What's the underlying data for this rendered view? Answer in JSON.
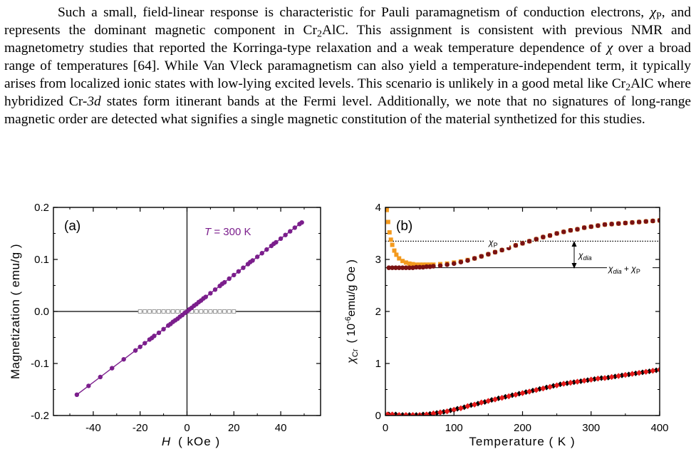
{
  "paragraph": {
    "segments": [
      {
        "t": "Such a small, field-linear response is characteristic for Pauli paramagnetism of conduction electrons, "
      },
      {
        "t": "χ",
        "style": "i"
      },
      {
        "t": "P",
        "style": "sub"
      },
      {
        "t": ", and represents the dominant magnetic component in Cr"
      },
      {
        "t": "2",
        "style": "sub"
      },
      {
        "t": "AlC. This assignment is consistent with previous NMR and magnetometry studies that reported the Korringa-type relaxation and a weak temperature dependence of "
      },
      {
        "t": "χ",
        "style": "i"
      },
      {
        "t": " over a broad range of temperatures [64]. While Van Vleck paramagnetism can also yield a temperature-independent term, it typically arises from localized ionic states with low-lying excited levels. This scenario is unlikely in a good metal like Cr"
      },
      {
        "t": "2",
        "style": "sub"
      },
      {
        "t": "AlC where hybridized Cr-"
      },
      {
        "t": "3d",
        "style": "i"
      },
      {
        "t": " states form itinerant bands at the Fermi level. Additionally, we note that no signatures of long-range magnetic order are detected what signifies a single magnetic constitution of the material synthetized for this studies."
      }
    ]
  },
  "colors": {
    "purple": "#7B1E8C",
    "gray_open": "#9A9A9A",
    "orange": "#F39A1E",
    "maroon": "#7A1212",
    "black": "#000000",
    "red": "#E41A1A"
  },
  "chart_data": [
    {
      "type": "scatter",
      "panel_label": "(a)",
      "annotation": "T = 300 K",
      "annotation_var": "T",
      "annotation_rest": " = 300 K",
      "xlabel_var": "H",
      "xlabel_unit": "( kOe )",
      "ylabel": "Magnetization  ( emu/g )",
      "xlim": [
        -57,
        57
      ],
      "ylim": [
        -0.2,
        0.2
      ],
      "xticks": [
        -40,
        -20,
        0,
        20,
        40
      ],
      "xtick_labels": [
        "-40",
        "-20",
        "0",
        "20",
        "40"
      ],
      "yticks": [
        -0.2,
        -0.1,
        0.0,
        0.1,
        0.2
      ],
      "ytick_labels": [
        "-0.2",
        "-0.1",
        "0.0",
        "0.1",
        "0.2"
      ],
      "series": [
        {
          "style": "filled-line",
          "color": "purple",
          "x": [
            -47,
            -42,
            -37,
            -32,
            -27,
            -22,
            -20,
            -18,
            -16,
            -15,
            -14,
            -12,
            -10,
            -8,
            -7,
            -6,
            -5,
            -4,
            -3,
            -2,
            -1,
            0,
            1,
            2,
            3,
            4,
            5,
            6,
            7,
            8,
            10,
            12,
            14,
            15,
            16,
            18,
            20,
            22,
            24,
            26,
            27,
            28,
            30,
            32,
            34,
            36,
            37,
            38,
            40,
            42,
            44,
            46,
            48,
            49
          ],
          "y": [
            -0.16,
            -0.143,
            -0.126,
            -0.109,
            -0.092,
            -0.075,
            -0.068,
            -0.061,
            -0.054,
            -0.051,
            -0.047,
            -0.041,
            -0.034,
            -0.027,
            -0.024,
            -0.02,
            -0.017,
            -0.014,
            -0.01,
            -0.007,
            -0.003,
            0.0,
            0.004,
            0.007,
            0.011,
            0.014,
            0.018,
            0.021,
            0.025,
            0.028,
            0.035,
            0.042,
            0.049,
            0.053,
            0.056,
            0.063,
            0.07,
            0.077,
            0.084,
            0.091,
            0.095,
            0.098,
            0.105,
            0.112,
            0.119,
            0.126,
            0.13,
            0.133,
            0.14,
            0.147,
            0.154,
            0.161,
            0.168,
            0.171
          ]
        },
        {
          "style": "open-square-line",
          "color": "gray_open",
          "x": [
            -20,
            -18,
            -16,
            -14,
            -12,
            -10,
            -8,
            -6,
            -4,
            -2,
            0,
            2,
            4,
            6,
            8,
            10,
            12,
            14,
            16,
            18,
            20
          ],
          "y": [
            0,
            0,
            0,
            0,
            0,
            0,
            0,
            0,
            0,
            0,
            0,
            0,
            0,
            0,
            0,
            0,
            0,
            0,
            0,
            0,
            0
          ]
        }
      ]
    },
    {
      "type": "scatter",
      "panel_label": "(b)",
      "xlabel": "Temperature  ( K )",
      "ylabel_sym": "χ",
      "ylabel_sub": "Cr",
      "ylabel_open": "( 10",
      "ylabel_sup": "-6",
      "ylabel_close": "emu/g Oe )",
      "xlim": [
        0,
        400
      ],
      "ylim": [
        0,
        4
      ],
      "xticks": [
        0,
        100,
        200,
        300,
        400
      ],
      "xtick_labels": [
        "0",
        "100",
        "200",
        "300",
        "400"
      ],
      "yticks": [
        0,
        1,
        2,
        3,
        4
      ],
      "ytick_labels": [
        "0",
        "1",
        "2",
        "3",
        "4"
      ],
      "reference_lines": {
        "chi_p_level": 3.35,
        "chi_dia_plus_p_level": 2.84
      },
      "annotations": {
        "chi_p_sym": "χ",
        "chi_p_sub": "P",
        "chi_dia_sym": "χ",
        "chi_dia_sub": "dia",
        "sum_sym1": "χ",
        "sum_sub1": "dia",
        "sum_plus": " + ",
        "sum_sym2": "χ",
        "sum_sub2": "P"
      },
      "series": [
        {
          "style": "orange-square",
          "color": "orange",
          "x": [
            2,
            4,
            6,
            8,
            10,
            13,
            16,
            20,
            25,
            30,
            35,
            40,
            45,
            50,
            55,
            60,
            65,
            70,
            80,
            90,
            100,
            110,
            120,
            130,
            140,
            150,
            160,
            170,
            180,
            190,
            200,
            210,
            220,
            230,
            240,
            250,
            260,
            270,
            280,
            290,
            300,
            310,
            320,
            330,
            340,
            350,
            360,
            370,
            380,
            390,
            400
          ],
          "y": [
            3.95,
            3.72,
            3.52,
            3.38,
            3.28,
            3.17,
            3.09,
            3.02,
            2.97,
            2.94,
            2.92,
            2.91,
            2.9,
            2.9,
            2.9,
            2.9,
            2.9,
            2.9,
            2.91,
            2.92,
            2.94,
            2.96,
            2.99,
            3.02,
            3.06,
            3.1,
            3.14,
            3.18,
            3.23,
            3.27,
            3.31,
            3.35,
            3.39,
            3.43,
            3.46,
            3.5,
            3.53,
            3.56,
            3.58,
            3.61,
            3.63,
            3.65,
            3.67,
            3.68,
            3.69,
            3.7,
            3.71,
            3.72,
            3.73,
            3.74,
            3.75
          ]
        },
        {
          "style": "maroon-circle",
          "color": "maroon",
          "x": [
            5,
            10,
            15,
            20,
            25,
            30,
            35,
            40,
            45,
            50,
            55,
            60,
            65,
            70,
            80,
            90,
            100,
            110,
            120,
            130,
            140,
            150,
            160,
            170,
            180,
            190,
            200,
            210,
            220,
            230,
            240,
            250,
            260,
            270,
            280,
            290,
            300,
            310,
            320,
            330,
            340,
            350,
            360,
            370,
            380,
            390,
            400
          ],
          "y": [
            2.84,
            2.84,
            2.84,
            2.84,
            2.84,
            2.84,
            2.84,
            2.84,
            2.85,
            2.85,
            2.85,
            2.86,
            2.86,
            2.87,
            2.88,
            2.9,
            2.92,
            2.95,
            2.98,
            3.02,
            3.06,
            3.1,
            3.14,
            3.18,
            3.22,
            3.27,
            3.31,
            3.35,
            3.39,
            3.43,
            3.46,
            3.5,
            3.53,
            3.56,
            3.58,
            3.61,
            3.63,
            3.65,
            3.67,
            3.68,
            3.69,
            3.7,
            3.71,
            3.72,
            3.73,
            3.74,
            3.75
          ]
        },
        {
          "style": "black-diamond",
          "color": "black",
          "x": [
            5,
            15,
            25,
            35,
            45,
            55,
            65,
            75,
            85,
            95,
            105,
            115,
            125,
            135,
            145,
            155,
            165,
            175,
            185,
            195,
            205,
            215,
            225,
            235,
            245,
            255,
            265,
            275,
            285,
            295,
            305,
            315,
            325,
            335,
            345,
            355,
            365,
            375,
            385,
            395
          ],
          "y": [
            0.02,
            0.02,
            0.01,
            0.01,
            0.01,
            0.02,
            0.03,
            0.05,
            0.07,
            0.1,
            0.13,
            0.16,
            0.2,
            0.23,
            0.26,
            0.3,
            0.33,
            0.36,
            0.39,
            0.42,
            0.45,
            0.48,
            0.51,
            0.54,
            0.57,
            0.6,
            0.62,
            0.64,
            0.66,
            0.68,
            0.7,
            0.72,
            0.73,
            0.75,
            0.77,
            0.79,
            0.81,
            0.83,
            0.85,
            0.87
          ]
        },
        {
          "style": "red-diamond",
          "color": "red",
          "x": [
            3,
            10,
            20,
            30,
            40,
            50,
            60,
            70,
            80,
            90,
            100,
            110,
            120,
            130,
            140,
            150,
            160,
            170,
            180,
            190,
            200,
            210,
            220,
            230,
            240,
            250,
            260,
            270,
            280,
            290,
            300,
            310,
            320,
            330,
            340,
            350,
            360,
            370,
            380,
            390,
            400
          ],
          "y": [
            0.02,
            0.02,
            0.01,
            0.01,
            0.01,
            0.01,
            0.02,
            0.04,
            0.06,
            0.08,
            0.11,
            0.14,
            0.18,
            0.21,
            0.25,
            0.28,
            0.31,
            0.34,
            0.37,
            0.4,
            0.43,
            0.46,
            0.49,
            0.52,
            0.55,
            0.58,
            0.61,
            0.63,
            0.65,
            0.67,
            0.69,
            0.71,
            0.72,
            0.74,
            0.76,
            0.78,
            0.8,
            0.82,
            0.84,
            0.86,
            0.88
          ]
        }
      ]
    }
  ]
}
